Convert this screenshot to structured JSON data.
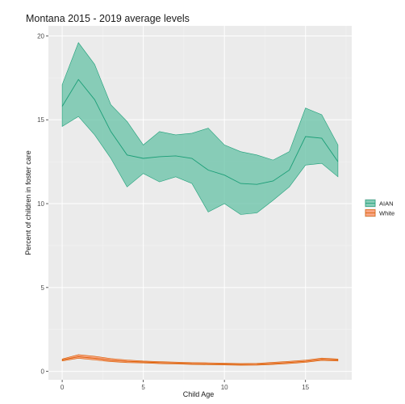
{
  "chart_data": {
    "type": "area",
    "title": "Montana 2015 - 2019 average levels",
    "xlabel": "Child Age",
    "ylabel": "Percent of children in foster care",
    "xlim": [
      -0.85,
      17.85
    ],
    "ylim": [
      -0.5,
      20.6
    ],
    "x_ticks": [
      0,
      5,
      10,
      15
    ],
    "y_ticks": [
      0,
      5,
      10,
      15,
      20
    ],
    "grid": true,
    "legend_position": "right",
    "x": [
      0,
      1,
      2,
      3,
      4,
      5,
      6,
      7,
      8,
      9,
      10,
      11,
      12,
      13,
      14,
      15,
      16,
      17
    ],
    "series": [
      {
        "name": "AIAN",
        "color": "#1b9e77",
        "fill": "#66c2a5",
        "mean": [
          15.8,
          17.4,
          16.2,
          14.3,
          12.9,
          12.7,
          12.8,
          12.85,
          12.7,
          12.0,
          11.7,
          11.2,
          11.15,
          11.35,
          12.0,
          14.0,
          13.9,
          12.5
        ],
        "upper": [
          17.1,
          19.6,
          18.3,
          15.9,
          14.9,
          13.5,
          14.3,
          14.1,
          14.2,
          14.5,
          13.5,
          13.1,
          12.9,
          12.6,
          13.1,
          15.7,
          15.3,
          13.5
        ],
        "lower": [
          14.6,
          15.2,
          14.1,
          12.7,
          11.0,
          11.8,
          11.3,
          11.6,
          11.2,
          9.5,
          10.0,
          9.35,
          9.45,
          10.2,
          11.0,
          12.3,
          12.4,
          11.6
        ]
      },
      {
        "name": "White",
        "color": "#d95f02",
        "fill": "#fc8d62",
        "mean": [
          0.68,
          0.88,
          0.78,
          0.66,
          0.6,
          0.56,
          0.52,
          0.49,
          0.46,
          0.45,
          0.43,
          0.41,
          0.42,
          0.47,
          0.53,
          0.6,
          0.72,
          0.68
        ],
        "upper": [
          0.74,
          1.0,
          0.9,
          0.76,
          0.68,
          0.62,
          0.58,
          0.55,
          0.52,
          0.51,
          0.49,
          0.47,
          0.48,
          0.54,
          0.6,
          0.67,
          0.79,
          0.74
        ],
        "lower": [
          0.62,
          0.78,
          0.68,
          0.58,
          0.52,
          0.5,
          0.46,
          0.44,
          0.41,
          0.4,
          0.38,
          0.36,
          0.37,
          0.41,
          0.47,
          0.54,
          0.65,
          0.62
        ]
      }
    ]
  }
}
